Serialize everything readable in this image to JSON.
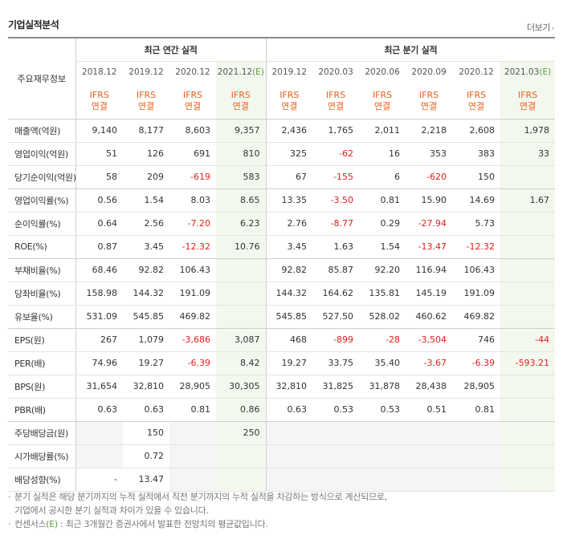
{
  "header": {
    "title": "기업실적분석",
    "more_label": "더보기"
  },
  "table": {
    "corner_label": "주요재무정보",
    "annual_label": "최근 연간 실적",
    "quarter_label": "최근 분기 실적",
    "ifrs_line1": "IFRS",
    "ifrs_line2": "연결",
    "estimate_mark": "(E)",
    "annual_periods": [
      "2018.12",
      "2019.12",
      "2020.12",
      "2021.12"
    ],
    "quarter_periods": [
      "2019.12",
      "2020.03",
      "2020.06",
      "2020.09",
      "2020.12",
      "2021.03"
    ],
    "rows": [
      {
        "label": "매출액(억원)",
        "values": [
          "9,140",
          "8,177",
          "8,603",
          "9,357",
          "2,436",
          "1,765",
          "2,011",
          "2,218",
          "2,608",
          "1,978"
        ]
      },
      {
        "label": "영업이익(억원)",
        "values": [
          "51",
          "126",
          "691",
          "810",
          "325",
          "-62",
          "16",
          "353",
          "383",
          "33"
        ]
      },
      {
        "label": "당기순이익(억원)",
        "values": [
          "58",
          "209",
          "-619",
          "583",
          "67",
          "-155",
          "6",
          "-620",
          "150",
          ""
        ]
      },
      {
        "label": "영업이익률(%)",
        "values": [
          "0.56",
          "1.54",
          "8.03",
          "8.65",
          "13.35",
          "-3.50",
          "0.81",
          "15.90",
          "14.69",
          "1.67"
        ]
      },
      {
        "label": "순이익률(%)",
        "values": [
          "0.64",
          "2.56",
          "-7.20",
          "6.23",
          "2.76",
          "-8.77",
          "0.29",
          "-27.94",
          "5.73",
          ""
        ]
      },
      {
        "label": "ROE(%)",
        "values": [
          "0.87",
          "3.45",
          "-12.32",
          "10.76",
          "3.45",
          "1.63",
          "1.54",
          "-13.47",
          "-12.32",
          ""
        ]
      },
      {
        "label": "부채비율(%)",
        "values": [
          "68.46",
          "92.82",
          "106.43",
          "",
          "92.82",
          "85.87",
          "92.20",
          "116.94",
          "106.43",
          ""
        ]
      },
      {
        "label": "당좌비율(%)",
        "values": [
          "158.98",
          "144.32",
          "191.09",
          "",
          "144.32",
          "164.62",
          "135.81",
          "145.19",
          "191.09",
          ""
        ]
      },
      {
        "label": "유보율(%)",
        "values": [
          "531.09",
          "545.85",
          "469.82",
          "",
          "545.85",
          "527.50",
          "528.02",
          "460.62",
          "469.82",
          ""
        ]
      },
      {
        "label": "EPS(원)",
        "values": [
          "267",
          "1,079",
          "-3,686",
          "3,087",
          "468",
          "-899",
          "-28",
          "-3,504",
          "746",
          "-44"
        ]
      },
      {
        "label": "PER(배)",
        "values": [
          "74.96",
          "19.27",
          "-6.39",
          "8.42",
          "19.27",
          "33.75",
          "35.40",
          "-3.67",
          "-6.39",
          "-593.21"
        ]
      },
      {
        "label": "BPS(원)",
        "values": [
          "31,654",
          "32,810",
          "28,905",
          "30,305",
          "32,810",
          "31,825",
          "31,878",
          "28,438",
          "28,905",
          ""
        ]
      },
      {
        "label": "PBR(배)",
        "values": [
          "0.63",
          "0.63",
          "0.81",
          "0.86",
          "0.63",
          "0.53",
          "0.53",
          "0.51",
          "0.81",
          ""
        ]
      },
      {
        "label": "주당배당금(원)",
        "values": [
          "",
          "150",
          "",
          "250",
          "",
          "",
          "",
          "",
          "",
          ""
        ]
      },
      {
        "label": "시가배당률(%)",
        "values": [
          "",
          "0.72",
          "",
          "",
          "",
          "",
          "",
          "",
          "",
          ""
        ]
      },
      {
        "label": "배당성향(%)",
        "values": [
          "-",
          "13.47",
          "",
          "",
          "",
          "",
          "",
          "",
          "",
          ""
        ]
      }
    ]
  },
  "notes": {
    "line1": "분기 실적은 해당 분기까지의 누적 실적에서 직전 분기까지의 누적 실적을 차감하는 방식으로 계산되므로,",
    "line1b": "기업에서 공시한 분기 실적과 차이가 있을 수 있습니다.",
    "line2_a": "컨센서스",
    "line2_b": "(E)",
    "line2_c": " : 최근 3개월간 증권사에서 발표한 전망치의 평균값입니다."
  },
  "colors": {
    "negative": "#e0201e",
    "ifrs": "#e8601c",
    "estimate": "#5a9a3c",
    "estimate_bg": "#f3f8ef"
  }
}
